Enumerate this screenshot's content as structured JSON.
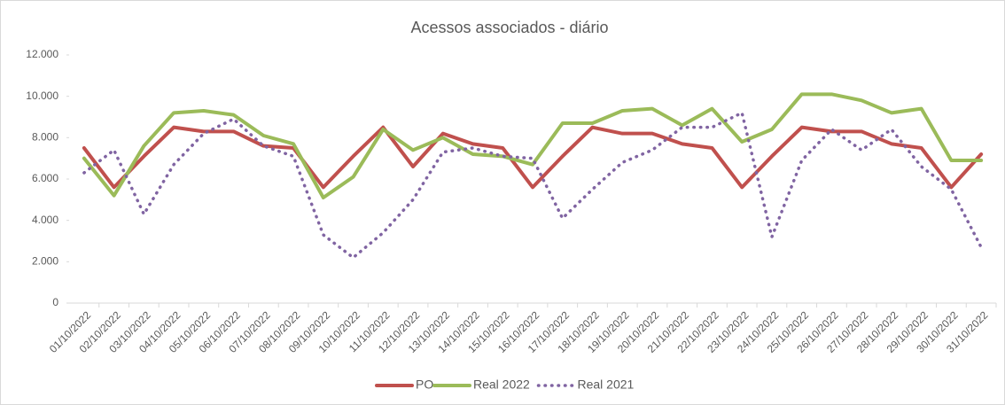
{
  "chart_data": {
    "type": "line",
    "title": "Acessos associados - diário",
    "categories": [
      "01/10/2022",
      "02/10/2022",
      "03/10/2022",
      "04/10/2022",
      "05/10/2022",
      "06/10/2022",
      "07/10/2022",
      "08/10/2022",
      "09/10/2022",
      "10/10/2022",
      "11/10/2022",
      "12/10/2022",
      "13/10/2022",
      "14/10/2022",
      "15/10/2022",
      "16/10/2022",
      "17/10/2022",
      "18/10/2022",
      "19/10/2022",
      "20/10/2022",
      "21/10/2022",
      "22/10/2022",
      "23/10/2022",
      "24/10/2022",
      "25/10/2022",
      "26/10/2022",
      "27/10/2022",
      "28/10/2022",
      "29/10/2022",
      "30/10/2022",
      "31/10/2022"
    ],
    "series": [
      {
        "name": "PO",
        "color": "#c0504d",
        "values": [
          7500,
          5600,
          7100,
          8500,
          8300,
          8300,
          7600,
          7500,
          5600,
          7100,
          8500,
          6600,
          8200,
          7700,
          7500,
          5600,
          7100,
          8500,
          8200,
          8200,
          7700,
          7500,
          5600,
          7100,
          8500,
          8300,
          8300,
          7700,
          7500,
          5600,
          7200
        ]
      },
      {
        "name": "Real 2022",
        "color": "#9bbb59",
        "values": [
          7000,
          5200,
          7600,
          9200,
          9300,
          9100,
          8100,
          7700,
          5100,
          6100,
          8400,
          7400,
          8000,
          7200,
          7100,
          6700,
          8700,
          8700,
          9300,
          9400,
          8600,
          9400,
          7800,
          8400,
          10100,
          10100,
          9800,
          9200,
          9400,
          6900,
          6900
        ]
      },
      {
        "name": "Real 2021",
        "color": "#8064a2",
        "dashed": true,
        "values": [
          6300,
          7400,
          4300,
          6700,
          8200,
          8900,
          7600,
          7100,
          3300,
          2200,
          3400,
          5000,
          7300,
          7500,
          7100,
          7000,
          4100,
          5500,
          6800,
          7400,
          8500,
          8500,
          9200,
          3200,
          6900,
          8400,
          7400,
          8400,
          6600,
          5500,
          2700
        ]
      }
    ],
    "ylim": [
      0,
      12000
    ],
    "yticks": [
      0,
      {
        "value": 2000,
        "label": "2.000"
      },
      {
        "value": 4000,
        "label": "4.000"
      },
      {
        "value": 6000,
        "label": "6.000"
      },
      {
        "value": 8000,
        "label": "8.000"
      },
      {
        "value": 10000,
        "label": "10.000"
      },
      {
        "value": 12000,
        "label": "12.000"
      }
    ],
    "grid": false,
    "legend": "bottom"
  }
}
